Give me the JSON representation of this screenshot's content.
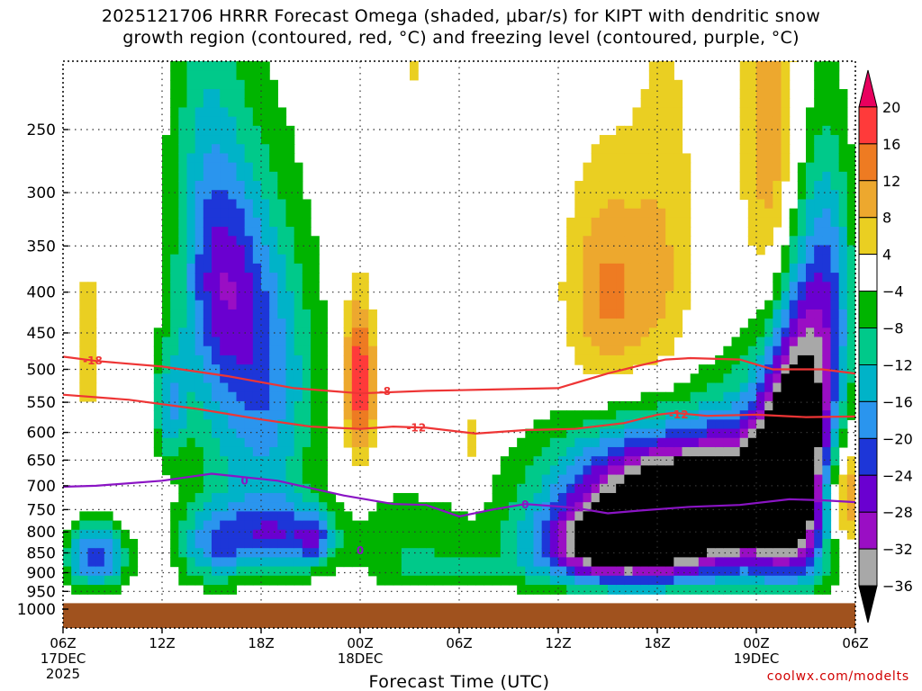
{
  "title": {
    "line1": "2025121706 HRRR Forecast Omega (shaded, μbar/s) for KIPT with dendritic snow",
    "line2": "growth region (contoured, red, °C) and freezing level (contoured, purple, °C)"
  },
  "credit": "coolwx.com/modelts",
  "chart_data": {
    "type": "heatmap",
    "title": "2025121706 HRRR Forecast Omega (shaded, μbar/s) for KIPT with dendritic snow growth region (contoured, red, °C) and freezing level (contoured, purple, °C)",
    "xlabel": "Forecast Time (UTC)",
    "ylabel": "",
    "x_ticks": [
      {
        "hour": 0,
        "label": "06Z",
        "sub1": "17DEC",
        "sub2": "2025"
      },
      {
        "hour": 6,
        "label": "12Z",
        "sub1": "",
        "sub2": ""
      },
      {
        "hour": 12,
        "label": "18Z",
        "sub1": "",
        "sub2": ""
      },
      {
        "hour": 18,
        "label": "00Z",
        "sub1": "18DEC",
        "sub2": ""
      },
      {
        "hour": 24,
        "label": "06Z",
        "sub1": "",
        "sub2": ""
      },
      {
        "hour": 30,
        "label": "12Z",
        "sub1": "",
        "sub2": ""
      },
      {
        "hour": 36,
        "label": "18Z",
        "sub1": "",
        "sub2": ""
      },
      {
        "hour": 42,
        "label": "00Z",
        "sub1": "19DEC",
        "sub2": ""
      },
      {
        "hour": 48,
        "label": "06Z",
        "sub1": "",
        "sub2": ""
      }
    ],
    "xlim": [
      0,
      48
    ],
    "y_ticks": [
      250,
      300,
      350,
      400,
      450,
      500,
      550,
      600,
      650,
      700,
      750,
      800,
      850,
      900,
      950,
      1000
    ],
    "ylim_hpa": [
      200,
      1013
    ],
    "ground_hpa": 983,
    "colorbar": {
      "levels": [
        20,
        16,
        12,
        8,
        4,
        -4,
        -8,
        -12,
        -16,
        -20,
        -24,
        -28,
        -32,
        -36
      ],
      "colors": [
        "#e8005e",
        "#ff3a3a",
        "#ee7b22",
        "#eda82e",
        "#eacf22",
        "#ffffff",
        "#00b400",
        "#00c98a",
        "#00b3c8",
        "#2a95ee",
        "#1d36d8",
        "#6a00d0",
        "#9a0ec4",
        "#a8a8a8",
        "#000000"
      ]
    },
    "colors": {
      "red_contour": "#ee3535",
      "purple_contour": "#8a14c4",
      "ground": "#a0521e"
    },
    "red_contour_labels": [
      "-18",
      "-8",
      "-12",
      "-12"
    ],
    "purple_contour_labels": [
      "0",
      "0",
      "0"
    ],
    "red_contours": [
      {
        "label": "-18",
        "points": [
          [
            0,
            482
          ],
          [
            2,
            488
          ],
          [
            6,
            496
          ],
          [
            10,
            510
          ],
          [
            14,
            528
          ],
          [
            18,
            536
          ],
          [
            22,
            532
          ],
          [
            26,
            530
          ],
          [
            30,
            528
          ],
          [
            33,
            506
          ],
          [
            35,
            494
          ],
          [
            36.5,
            486
          ],
          [
            38,
            484
          ],
          [
            41,
            486
          ],
          [
            43,
            500
          ],
          [
            46,
            500
          ],
          [
            48,
            506
          ]
        ]
      },
      {
        "label": "-12",
        "points": [
          [
            0,
            538
          ],
          [
            4,
            546
          ],
          [
            8,
            560
          ],
          [
            12,
            578
          ],
          [
            15,
            590
          ],
          [
            18,
            594
          ],
          [
            20,
            590
          ],
          [
            22,
            592
          ],
          [
            25,
            602
          ],
          [
            28,
            596
          ],
          [
            31,
            594
          ],
          [
            34,
            584
          ],
          [
            36,
            570
          ],
          [
            37,
            567
          ],
          [
            39,
            572
          ],
          [
            42,
            570
          ],
          [
            45,
            574
          ],
          [
            48,
            573
          ]
        ]
      }
    ],
    "purple_contours": [
      {
        "label": "0",
        "points": [
          [
            0,
            702
          ],
          [
            2,
            700
          ],
          [
            6,
            690
          ],
          [
            9,
            676
          ],
          [
            13,
            690
          ],
          [
            17,
            720
          ],
          [
            20,
            738
          ],
          [
            22,
            740
          ],
          [
            24,
            765
          ],
          [
            26,
            750
          ],
          [
            28,
            738
          ],
          [
            31,
            746
          ],
          [
            33,
            758
          ],
          [
            35,
            752
          ],
          [
            38,
            744
          ],
          [
            41,
            740
          ],
          [
            44,
            728
          ],
          [
            46,
            730
          ],
          [
            48,
            734
          ]
        ]
      }
    ]
  }
}
